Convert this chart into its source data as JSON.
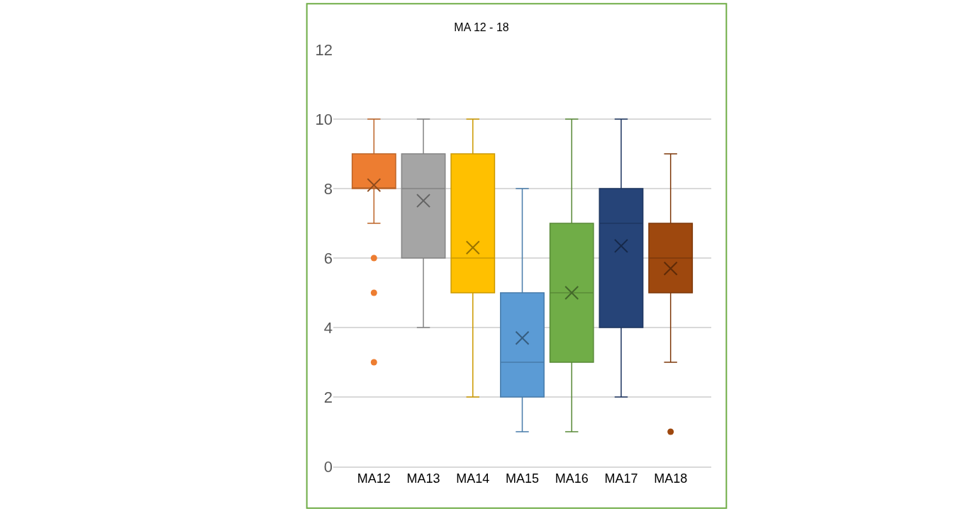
{
  "chart_data": {
    "type": "box",
    "title": "MA 12 - 18",
    "categories": [
      "MA12",
      "MA13",
      "MA14",
      "MA15",
      "MA16",
      "MA17",
      "MA18"
    ],
    "colors": [
      "#ed7d31",
      "#a5a5a5",
      "#ffc000",
      "#5b9bd5",
      "#70ad47",
      "#264478",
      "#9e480e"
    ],
    "boxes": [
      {
        "low": 7,
        "q1": 8,
        "median": 8,
        "q3": 9,
        "high": 10,
        "mean": 8.1,
        "outliers": [
          6,
          5,
          3
        ]
      },
      {
        "low": 4,
        "q1": 6,
        "median": 8,
        "q3": 9,
        "high": 10,
        "mean": 7.65
      },
      {
        "low": 2,
        "q1": 5,
        "median": 6,
        "q3": 9,
        "high": 10,
        "mean": 6.3
      },
      {
        "low": 1,
        "q1": 2,
        "median": 3,
        "q3": 5,
        "high": 8,
        "mean": 3.7
      },
      {
        "low": 1,
        "q1": 3,
        "median": 5,
        "q3": 7,
        "high": 10,
        "mean": 5
      },
      {
        "low": 2,
        "q1": 4,
        "median": 7,
        "q3": 8,
        "high": 10,
        "mean": 6.35
      },
      {
        "low": 3,
        "q1": 5,
        "median": 6,
        "q3": 7,
        "high": 9,
        "mean": 5.7,
        "outliers": [
          1
        ]
      }
    ],
    "ylim": [
      0,
      12
    ],
    "yticks": [
      0,
      2,
      4,
      6,
      8,
      10,
      12
    ],
    "grid": "y",
    "marker": "cross"
  }
}
